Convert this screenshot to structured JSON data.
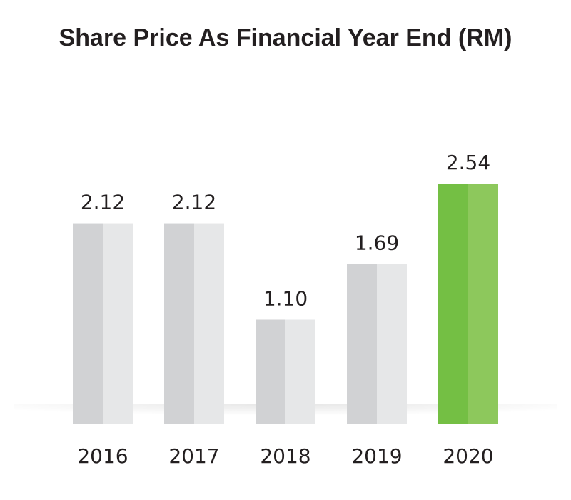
{
  "chart_data": {
    "type": "bar",
    "title": "Share Price As Financial Year End (RM)",
    "xlabel": "",
    "ylabel": "",
    "categories": [
      "2016",
      "2017",
      "2018",
      "2019",
      "2020"
    ],
    "values": [
      2.12,
      2.12,
      1.1,
      1.69,
      2.54
    ],
    "value_labels": [
      "2.12",
      "2.12",
      "1.10",
      "1.69",
      "2.54"
    ],
    "ylim": [
      0,
      2.54
    ],
    "grid": false,
    "legend": "none",
    "colors": {
      "default_dark": "#d1d2d4",
      "default_light": "#e6e7e8",
      "highlight_dark": "#74bf44",
      "highlight_light": "#8dc85c",
      "text": "#231f20"
    },
    "highlight_category": "2020"
  }
}
